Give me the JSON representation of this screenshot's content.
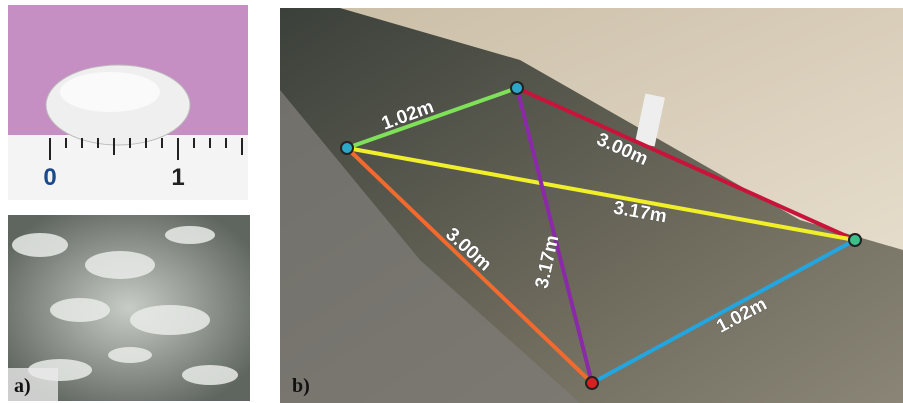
{
  "panels": [
    {
      "label": "a)",
      "ruler_labels": [
        "0",
        "1"
      ]
    },
    {
      "label": "b)",
      "measurements": [
        "1.02m",
        "3.00m",
        "3.17m",
        "3.00m",
        "3.17m",
        "1.02m"
      ]
    }
  ]
}
